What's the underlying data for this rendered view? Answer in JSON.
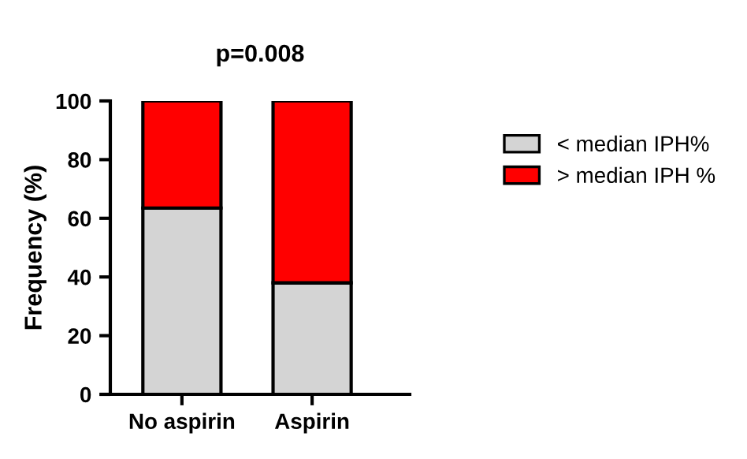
{
  "chart_data": {
    "type": "bar",
    "stacked": true,
    "title": "p=0.008",
    "ylabel": "Frequency (%)",
    "categories": [
      "No aspirin",
      "Aspirin"
    ],
    "series": [
      {
        "name": "< median IPH%",
        "color": "#d4d4d4",
        "values": [
          63.5,
          38
        ]
      },
      {
        "name": "> median IPH %",
        "color": "#ff0000",
        "values": [
          36.5,
          62
        ]
      }
    ],
    "ylim": [
      0,
      100
    ],
    "yticks": [
      0,
      20,
      40,
      60,
      80,
      100
    ],
    "grid": false,
    "legend": "right"
  }
}
